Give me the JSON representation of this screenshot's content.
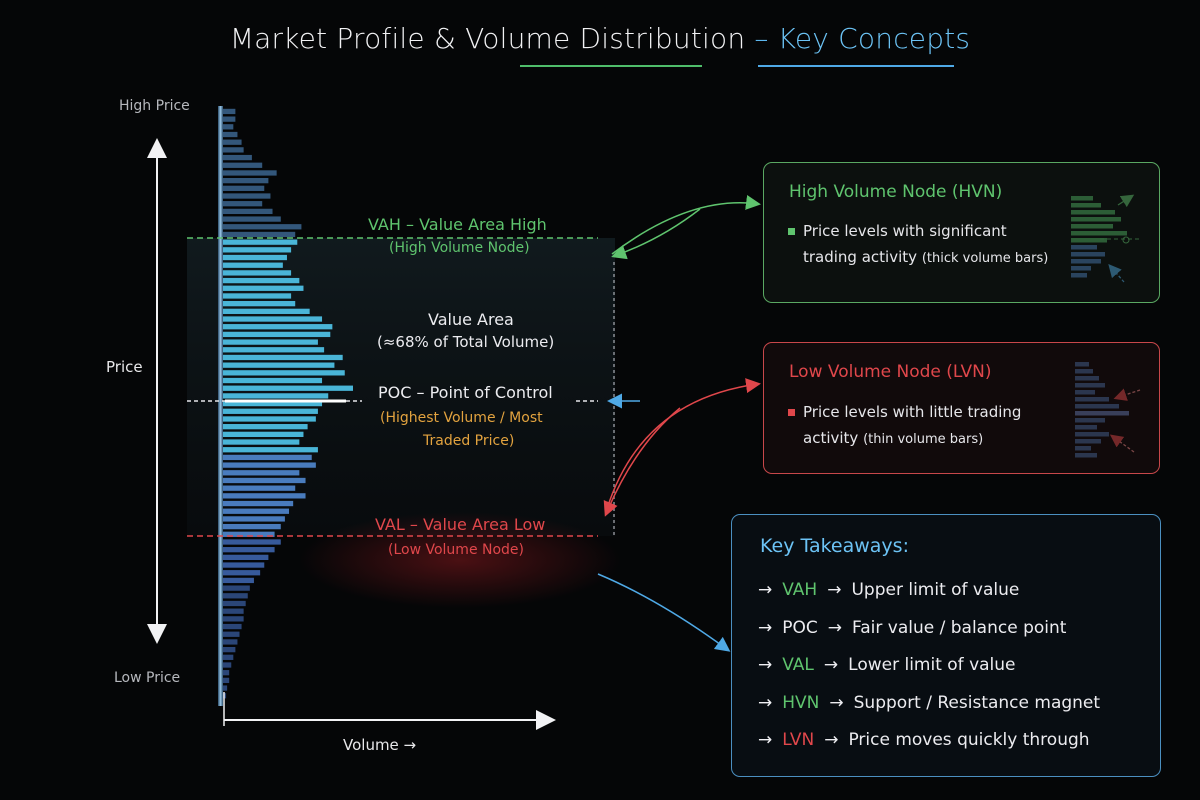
{
  "title": {
    "main": "Market Profile & Volume Distribution",
    "dash": "–",
    "sub": "Key Concepts"
  },
  "axis": {
    "high_price": "High Price",
    "low_price": "Low Price",
    "price": "Price",
    "volume": "Volume →"
  },
  "profile": {
    "levels": [
      12,
      12,
      10,
      14,
      18,
      20,
      28,
      38,
      52,
      44,
      40,
      46,
      38,
      48,
      56,
      76,
      70,
      72,
      66,
      62,
      58,
      66,
      74,
      78,
      66,
      70,
      84,
      96,
      106,
      104,
      92,
      98,
      116,
      108,
      118,
      96,
      126,
      102,
      96,
      92,
      90,
      82,
      78,
      74,
      92,
      86,
      90,
      74,
      80,
      70,
      80,
      68,
      64,
      60,
      56,
      50,
      56,
      50,
      44,
      40,
      36,
      30,
      26,
      24,
      22,
      20,
      20,
      18,
      16,
      14,
      12,
      10,
      8,
      6,
      6,
      4,
      3
    ],
    "hvn_markers": [
      "pale",
      "dark"
    ]
  },
  "labels": {
    "vah": "VAH – Value Area High",
    "vah_sub": "(High Volume Node)",
    "value_area": "Value Area",
    "value_area_sub": "(≈68% of Total Volume)",
    "poc": "POC – Point of Control",
    "poc_sub1": "(Highest Volume / Most",
    "poc_sub2": "Traded Price)",
    "val": "VAL – Value Area Low",
    "val_sub": "(Low Volume Node)"
  },
  "hvn_box": {
    "title": "High Volume Node (HVN)",
    "line1": "Price levels with significant",
    "line2": "trading activity",
    "line2_note": "(thick volume bars)"
  },
  "lvn_box": {
    "title": "Low Volume Node (LVN)",
    "line1": "Price levels with little trading",
    "line2": "activity",
    "line2_note": "(thin volume bars)"
  },
  "takeaways": {
    "title": "Key Takeaways:",
    "items": [
      {
        "key": "VAH",
        "arrow": "→",
        "text": "Upper limit of value",
        "color": "#5fc46e"
      },
      {
        "key": "POC",
        "arrow": "→",
        "text": "Fair value / balance point",
        "color": "#ececf0"
      },
      {
        "key": "VAL",
        "arrow": "→",
        "text": "Lower limit of value",
        "color": "#5fc46e"
      },
      {
        "key": "HVN",
        "arrow": "→",
        "text": "Support / Resistance magnet",
        "color": "#5fc46e"
      },
      {
        "key": "LVN",
        "arrow": "→",
        "text": "Price moves quickly through",
        "color": "#e0474b"
      }
    ]
  },
  "colors": {
    "green": "#5fc46e",
    "red": "#e0474b",
    "blue": "#4fa9e6",
    "orange": "#e3a33f",
    "bar_top": "#3f6b99",
    "bar_mid": "#4fc3e8",
    "bar_low": "#3c62a8"
  }
}
